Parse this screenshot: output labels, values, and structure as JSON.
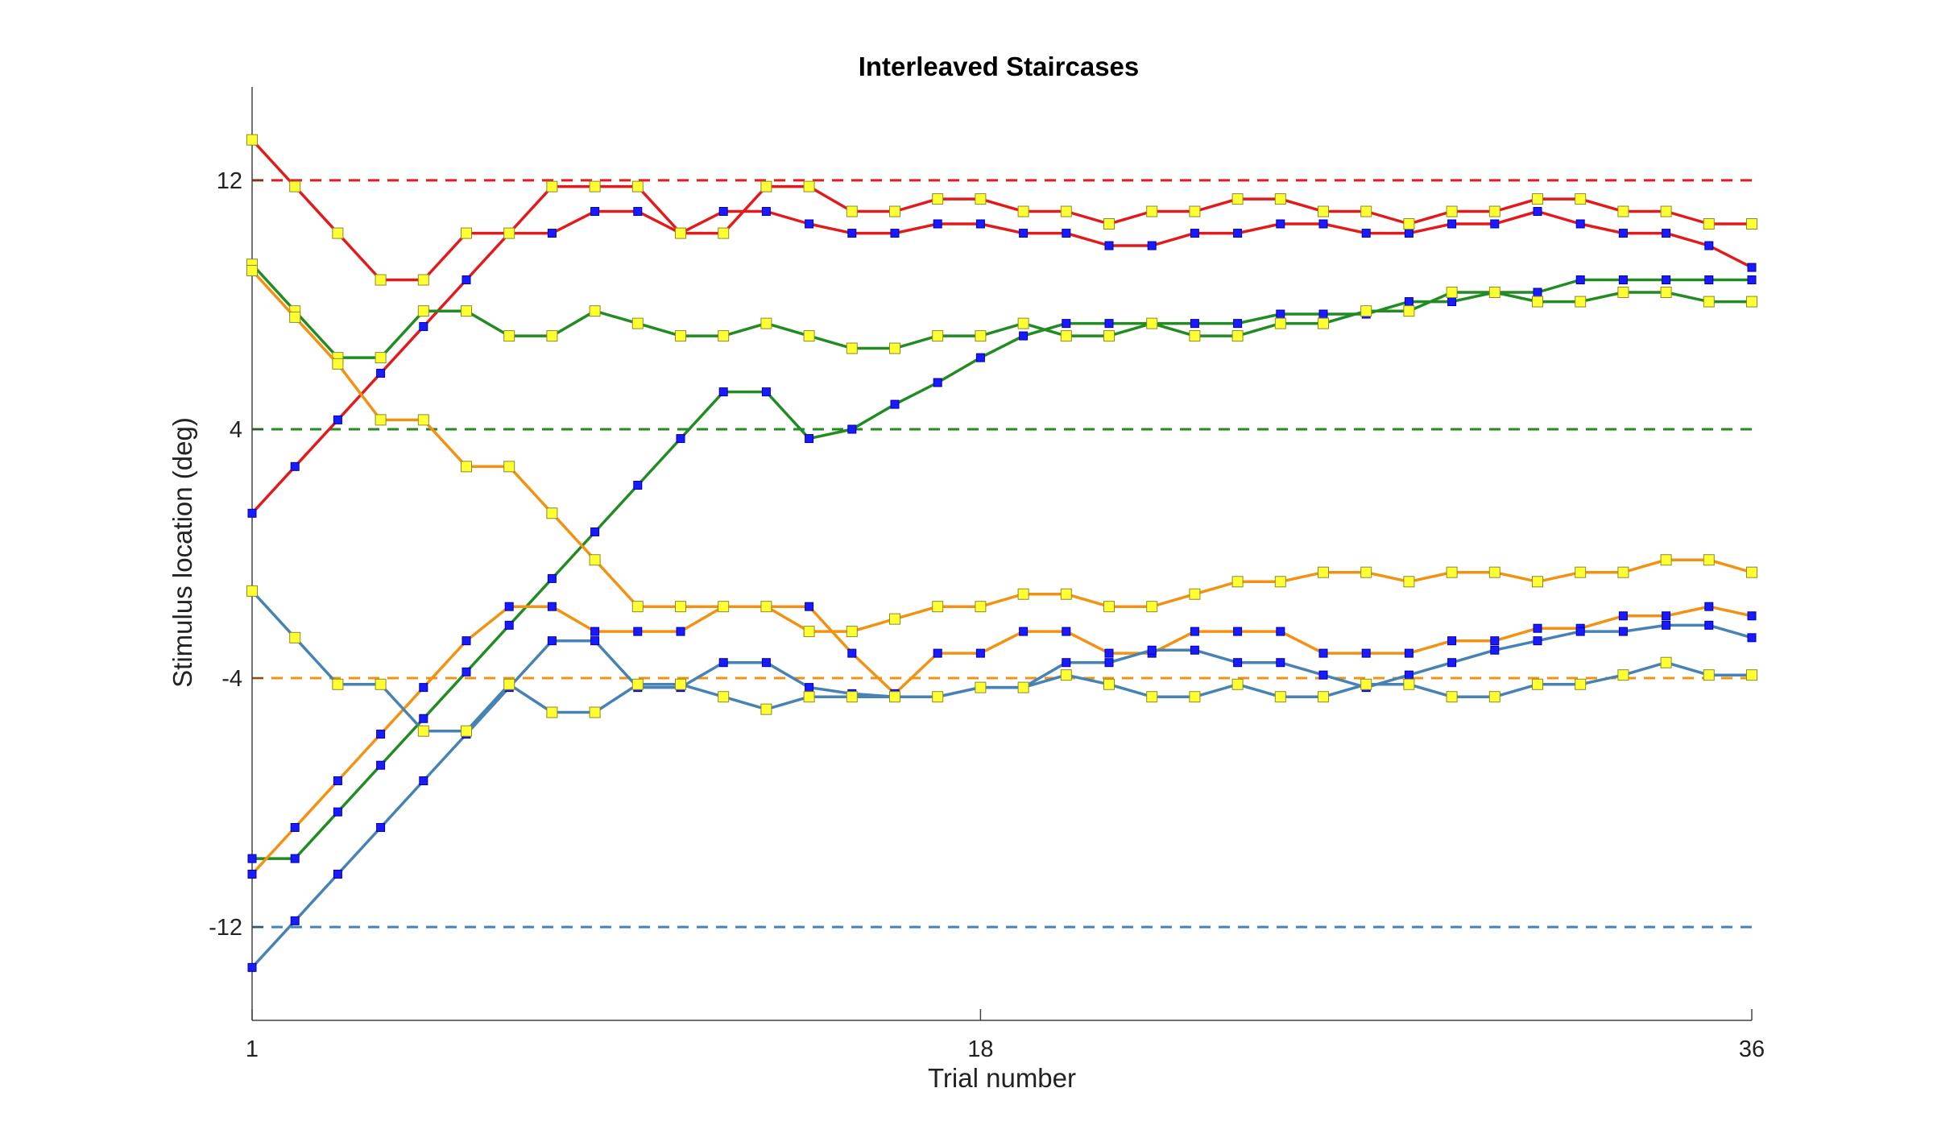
{
  "chart_data": {
    "type": "line",
    "title": "Interleaved Staircases",
    "xlabel": "Trial number",
    "ylabel": "Stimulus location (deg)",
    "xlim": [
      1,
      36
    ],
    "ylim": [
      -15,
      15
    ],
    "xticks": [
      1,
      18,
      36
    ],
    "yticks": [
      12,
      4,
      -4,
      -12
    ],
    "grid": false,
    "legend": "none",
    "reference_lines": [
      {
        "y": 12,
        "color": "#e31a1c"
      },
      {
        "y": 4,
        "color": "#228b22"
      },
      {
        "y": -4,
        "color": "#f39212"
      },
      {
        "y": -12,
        "color": "#4682b4"
      }
    ],
    "series": [
      {
        "color": "#e31a1c",
        "marker": "#1a1aff",
        "x": [
          1,
          2,
          3,
          4,
          5,
          6,
          7,
          8,
          9,
          10,
          11,
          12,
          13,
          14,
          15,
          16,
          17,
          18,
          19,
          20,
          21,
          22,
          23,
          24,
          25,
          26,
          27,
          28,
          29,
          30,
          31,
          32,
          33,
          34,
          35,
          36
        ],
        "values": [
          1.3,
          2.8,
          4.3,
          5.8,
          7.3,
          8.8,
          10.3,
          10.3,
          11.0,
          11.0,
          10.3,
          11.0,
          11.0,
          10.6,
          10.3,
          10.3,
          10.6,
          10.6,
          10.3,
          10.3,
          9.9,
          9.9,
          10.3,
          10.3,
          10.6,
          10.6,
          10.3,
          10.3,
          10.6,
          10.6,
          11.0,
          10.6,
          10.3,
          10.3,
          9.9,
          9.2
        ]
      },
      {
        "color": "#e31a1c",
        "marker": "#ffff33",
        "x": [
          1,
          2,
          3,
          4,
          5,
          6,
          7,
          8,
          9,
          10,
          11,
          12,
          13,
          14,
          15,
          16,
          17,
          18,
          19,
          20,
          21,
          22,
          23,
          24,
          25,
          26,
          27,
          28,
          29,
          30,
          31,
          32,
          33,
          34,
          35,
          36
        ],
        "values": [
          13.3,
          11.8,
          10.3,
          8.8,
          8.8,
          10.3,
          10.3,
          11.8,
          11.8,
          11.8,
          10.3,
          10.3,
          11.8,
          11.8,
          11.0,
          11.0,
          11.4,
          11.4,
          11.0,
          11.0,
          10.6,
          11.0,
          11.0,
          11.4,
          11.4,
          11.0,
          11.0,
          10.6,
          11.0,
          11.0,
          11.4,
          11.4,
          11.0,
          11.0,
          10.6,
          10.6
        ]
      },
      {
        "color": "#228b22",
        "marker": "#1a1aff",
        "x": [
          1,
          2,
          3,
          4,
          5,
          6,
          7,
          8,
          9,
          10,
          11,
          12,
          13,
          14,
          15,
          16,
          17,
          18,
          19,
          20,
          21,
          22,
          23,
          24,
          25,
          26,
          27,
          28,
          29,
          30,
          31,
          32,
          33,
          34,
          35,
          36
        ],
        "values": [
          -9.8,
          -9.8,
          -8.3,
          -6.8,
          -5.3,
          -3.8,
          -2.3,
          -0.8,
          0.7,
          2.2,
          3.7,
          5.2,
          5.2,
          3.7,
          4.0,
          4.8,
          5.5,
          6.3,
          7.0,
          7.4,
          7.4,
          7.4,
          7.4,
          7.4,
          7.7,
          7.7,
          7.7,
          8.1,
          8.1,
          8.4,
          8.4,
          8.8,
          8.8,
          8.8,
          8.8,
          8.8
        ]
      },
      {
        "color": "#228b22",
        "marker": "#ffff33",
        "x": [
          1,
          2,
          3,
          4,
          5,
          6,
          7,
          8,
          9,
          10,
          11,
          12,
          13,
          14,
          15,
          16,
          17,
          18,
          19,
          20,
          21,
          22,
          23,
          24,
          25,
          26,
          27,
          28,
          29,
          30,
          31,
          32,
          33,
          34,
          35,
          36
        ],
        "values": [
          9.3,
          7.8,
          6.3,
          6.3,
          7.8,
          7.8,
          7.0,
          7.0,
          7.8,
          7.4,
          7.0,
          7.0,
          7.4,
          7.0,
          6.6,
          6.6,
          7.0,
          7.0,
          7.4,
          7.0,
          7.0,
          7.4,
          7.0,
          7.0,
          7.4,
          7.4,
          7.8,
          7.8,
          8.4,
          8.4,
          8.1,
          8.1,
          8.4,
          8.4,
          8.1,
          8.1
        ]
      },
      {
        "color": "#f39212",
        "marker": "#1a1aff",
        "x": [
          1,
          2,
          3,
          4,
          5,
          6,
          7,
          8,
          9,
          10,
          11,
          12,
          13,
          14,
          15,
          16,
          17,
          18,
          19,
          20,
          21,
          22,
          23,
          24,
          25,
          26,
          27,
          28,
          29,
          30,
          31,
          32,
          33,
          34,
          35,
          36
        ],
        "values": [
          -10.3,
          -8.8,
          -7.3,
          -5.8,
          -4.3,
          -2.8,
          -1.7,
          -1.7,
          -2.5,
          -2.5,
          -2.5,
          -1.7,
          -1.7,
          -1.7,
          -3.2,
          -4.5,
          -3.2,
          -3.2,
          -2.5,
          -2.5,
          -3.2,
          -3.2,
          -2.5,
          -2.5,
          -2.5,
          -3.2,
          -3.2,
          -3.2,
          -2.8,
          -2.8,
          -2.4,
          -2.4,
          -2.0,
          -2.0,
          -1.7,
          -2.0
        ]
      },
      {
        "color": "#f39212",
        "marker": "#ffff33",
        "x": [
          1,
          2,
          3,
          4,
          5,
          6,
          7,
          8,
          9,
          10,
          11,
          12,
          13,
          14,
          15,
          16,
          17,
          18,
          19,
          20,
          21,
          22,
          23,
          24,
          25,
          26,
          27,
          28,
          29,
          30,
          31,
          32,
          33,
          34,
          35,
          36
        ],
        "values": [
          9.1,
          7.6,
          6.1,
          4.3,
          4.3,
          2.8,
          2.8,
          1.3,
          -0.2,
          -1.7,
          -1.7,
          -1.7,
          -1.7,
          -2.5,
          -2.5,
          -2.1,
          -1.7,
          -1.7,
          -1.3,
          -1.3,
          -1.7,
          -1.7,
          -1.3,
          -0.9,
          -0.9,
          -0.6,
          -0.6,
          -0.9,
          -0.6,
          -0.6,
          -0.9,
          -0.6,
          -0.6,
          -0.2,
          -0.2,
          -0.6
        ]
      },
      {
        "color": "#4682b4",
        "marker": "#1a1aff",
        "x": [
          1,
          2,
          3,
          4,
          5,
          6,
          7,
          8,
          9,
          10,
          11,
          12,
          13,
          14,
          15,
          16,
          17,
          18,
          19,
          20,
          21,
          22,
          23,
          24,
          25,
          26,
          27,
          28,
          29,
          30,
          31,
          32,
          33,
          34,
          35,
          36
        ],
        "values": [
          -13.3,
          -11.8,
          -10.3,
          -8.8,
          -7.3,
          -5.8,
          -4.3,
          -2.8,
          -2.8,
          -4.3,
          -4.3,
          -3.5,
          -3.5,
          -4.3,
          -4.5,
          -4.6,
          -4.6,
          -4.3,
          -4.3,
          -3.5,
          -3.5,
          -3.1,
          -3.1,
          -3.5,
          -3.5,
          -3.9,
          -4.3,
          -3.9,
          -3.5,
          -3.1,
          -2.8,
          -2.5,
          -2.5,
          -2.3,
          -2.3,
          -2.7
        ]
      },
      {
        "color": "#4682b4",
        "marker": "#ffff33",
        "x": [
          1,
          2,
          3,
          4,
          5,
          6,
          7,
          8,
          9,
          10,
          11,
          12,
          13,
          14,
          15,
          16,
          17,
          18,
          19,
          20,
          21,
          22,
          23,
          24,
          25,
          26,
          27,
          28,
          29,
          30,
          31,
          32,
          33,
          34,
          35,
          36
        ],
        "values": [
          -1.2,
          -2.7,
          -4.2,
          -4.2,
          -5.7,
          -5.7,
          -4.2,
          -5.1,
          -5.1,
          -4.2,
          -4.2,
          -4.6,
          -5.0,
          -4.6,
          -4.6,
          -4.6,
          -4.6,
          -4.3,
          -4.3,
          -3.9,
          -4.2,
          -4.6,
          -4.6,
          -4.2,
          -4.6,
          -4.6,
          -4.2,
          -4.2,
          -4.6,
          -4.6,
          -4.2,
          -4.2,
          -3.9,
          -3.5,
          -3.9,
          -3.9
        ]
      }
    ]
  }
}
